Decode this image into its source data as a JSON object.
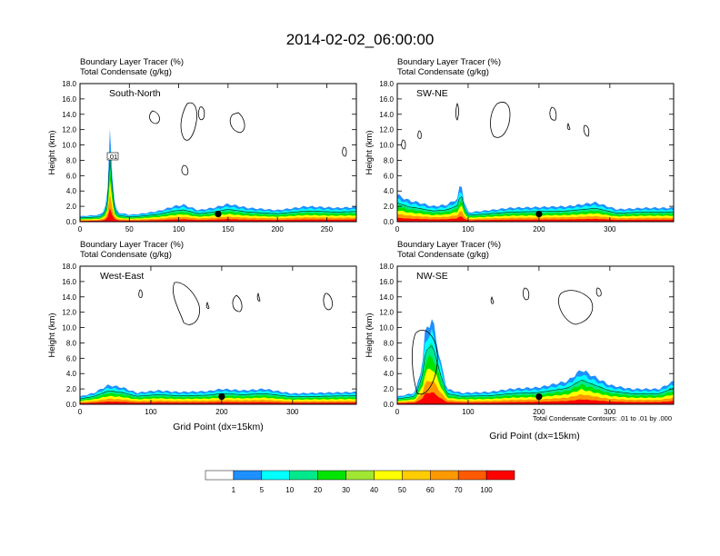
{
  "title": "2014-02-02_06:00:00",
  "header_line1": "Boundary Layer Tracer   (%)",
  "header_line2": "Total Condensate   (g/kg)",
  "ylabel": "Height (km)",
  "xlabel": "Grid Point (dx=15km)",
  "contour_note": "Total Condensate Contours: .01 to .01 by .000",
  "contour_label": ".01",
  "colorbar": {
    "colors": [
      "#ffffff",
      "#1e90ff",
      "#00ffff",
      "#00e88c",
      "#00e400",
      "#a0e632",
      "#ffff00",
      "#ffcc00",
      "#ff9900",
      "#ff5a00",
      "#ff0000"
    ],
    "labels": [
      "1",
      "5",
      "10",
      "20",
      "30",
      "40",
      "50",
      "60",
      "70",
      "100"
    ]
  },
  "chart_data": [
    {
      "type": "heatmap",
      "panel": "South-North",
      "title": "South-North",
      "xlim": [
        0,
        280
      ],
      "xticks": [
        0,
        50,
        100,
        150,
        200,
        250
      ],
      "ylim": [
        0,
        18
      ],
      "yticks": [
        "0.0",
        "2.0",
        "4.0",
        "6.0",
        "8.0",
        "10.0",
        "12.0",
        "14.0",
        "16.0",
        "18.0"
      ],
      "boundary_layer_height_km": [
        [
          0,
          0.7
        ],
        [
          10,
          0.8
        ],
        [
          20,
          0.9
        ],
        [
          25,
          1.5
        ],
        [
          28,
          4
        ],
        [
          30,
          13
        ],
        [
          32,
          8
        ],
        [
          34,
          3
        ],
        [
          38,
          1.2
        ],
        [
          50,
          0.9
        ],
        [
          60,
          1.0
        ],
        [
          80,
          1.4
        ],
        [
          95,
          2.0
        ],
        [
          105,
          2.2
        ],
        [
          120,
          1.5
        ],
        [
          135,
          1.8
        ],
        [
          150,
          2.3
        ],
        [
          170,
          1.8
        ],
        [
          200,
          1.5
        ],
        [
          230,
          2.0
        ],
        [
          260,
          1.8
        ],
        [
          280,
          1.9
        ]
      ],
      "marker_x": 140
    },
    {
      "type": "heatmap",
      "panel": "SW-NE",
      "title": "SW-NE",
      "xlim": [
        0,
        390
      ],
      "xticks": [
        0,
        100,
        200,
        300
      ],
      "ylim": [
        0,
        18
      ],
      "yticks": [
        "0.0",
        "2.0",
        "4.0",
        "6.0",
        "8.0",
        "10.0",
        "12.0",
        "14.0",
        "16.0",
        "18.0"
      ],
      "boundary_layer_height_km": [
        [
          0,
          3.5
        ],
        [
          15,
          2.8
        ],
        [
          30,
          2.5
        ],
        [
          50,
          2.0
        ],
        [
          70,
          2.2
        ],
        [
          85,
          3.0
        ],
        [
          90,
          5.5
        ],
        [
          93,
          3
        ],
        [
          100,
          1.2
        ],
        [
          130,
          1.5
        ],
        [
          160,
          1.8
        ],
        [
          200,
          1.9
        ],
        [
          240,
          2.0
        ],
        [
          280,
          2.5
        ],
        [
          310,
          1.6
        ],
        [
          350,
          1.8
        ],
        [
          390,
          1.8
        ]
      ],
      "marker_x": 200
    },
    {
      "type": "heatmap",
      "panel": "West-East",
      "title": "West-East",
      "xlim": [
        0,
        390
      ],
      "xticks": [
        0,
        100,
        200,
        300
      ],
      "ylim": [
        0,
        18
      ],
      "yticks": [
        "0.0",
        "2.0",
        "4.0",
        "6.0",
        "8.0",
        "10.0",
        "12.0",
        "14.0",
        "16.0",
        "18.0"
      ],
      "boundary_layer_height_km": [
        [
          0,
          1.0
        ],
        [
          20,
          1.5
        ],
        [
          40,
          2.5
        ],
        [
          60,
          2.2
        ],
        [
          80,
          1.5
        ],
        [
          110,
          1.8
        ],
        [
          140,
          1.6
        ],
        [
          180,
          1.7
        ],
        [
          200,
          2.0
        ],
        [
          230,
          1.8
        ],
        [
          260,
          2.0
        ],
        [
          300,
          1.4
        ],
        [
          340,
          1.5
        ],
        [
          390,
          1.6
        ]
      ],
      "marker_x": 200
    },
    {
      "type": "heatmap",
      "panel": "NW-SE",
      "title": "NW-SE",
      "xlim": [
        0,
        390
      ],
      "xticks": [
        0,
        100,
        200,
        300
      ],
      "ylim": [
        0,
        18
      ],
      "yticks": [
        "0.0",
        "2.0",
        "4.0",
        "6.0",
        "8.0",
        "10.0",
        "12.0",
        "14.0",
        "16.0",
        "18.0"
      ],
      "boundary_layer_height_km": [
        [
          0,
          1.0
        ],
        [
          25,
          1.5
        ],
        [
          35,
          5
        ],
        [
          40,
          10
        ],
        [
          50,
          11
        ],
        [
          60,
          6
        ],
        [
          70,
          2
        ],
        [
          90,
          1.5
        ],
        [
          130,
          1.6
        ],
        [
          160,
          2.0
        ],
        [
          200,
          2.2
        ],
        [
          240,
          3.0
        ],
        [
          260,
          4.5
        ],
        [
          280,
          3.5
        ],
        [
          300,
          2.5
        ],
        [
          330,
          2.0
        ],
        [
          370,
          2.0
        ],
        [
          390,
          3.0
        ]
      ],
      "marker_x": 200
    }
  ]
}
